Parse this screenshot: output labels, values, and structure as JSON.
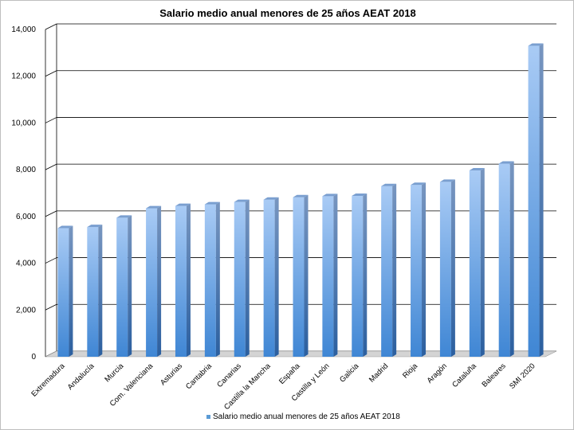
{
  "chart_data": {
    "type": "bar",
    "title": "Salario medio anual menores de 25 años AEAT 2018",
    "xlabel": "",
    "ylabel": "",
    "ylim": [
      0,
      14000
    ],
    "yticks": [
      "0",
      "2,000",
      "4,000",
      "6,000",
      "8,000",
      "10,000",
      "12,000",
      "14,000"
    ],
    "grid": true,
    "legend_position": "bottom",
    "categories": [
      "Extremadura",
      "Andalucía",
      "Murcia",
      "Com. Valenciana",
      "Asturias",
      "Cantabria",
      "Canarias",
      "Castilla la Mancha",
      "España",
      "Castilla y León",
      "Galicia",
      "Madrid",
      "Rioja",
      "Aragón",
      "Cataluña",
      "Baleares",
      "SMI 2020"
    ],
    "series": [
      {
        "name": "Salario medio anual menores de 25 años AEAT 2018",
        "color": "#5b9bd5",
        "values": [
          5500,
          5550,
          5950,
          6350,
          6450,
          6520,
          6620,
          6720,
          6820,
          6870,
          6880,
          7300,
          7350,
          7480,
          7970,
          8260,
          13300
        ]
      }
    ]
  }
}
